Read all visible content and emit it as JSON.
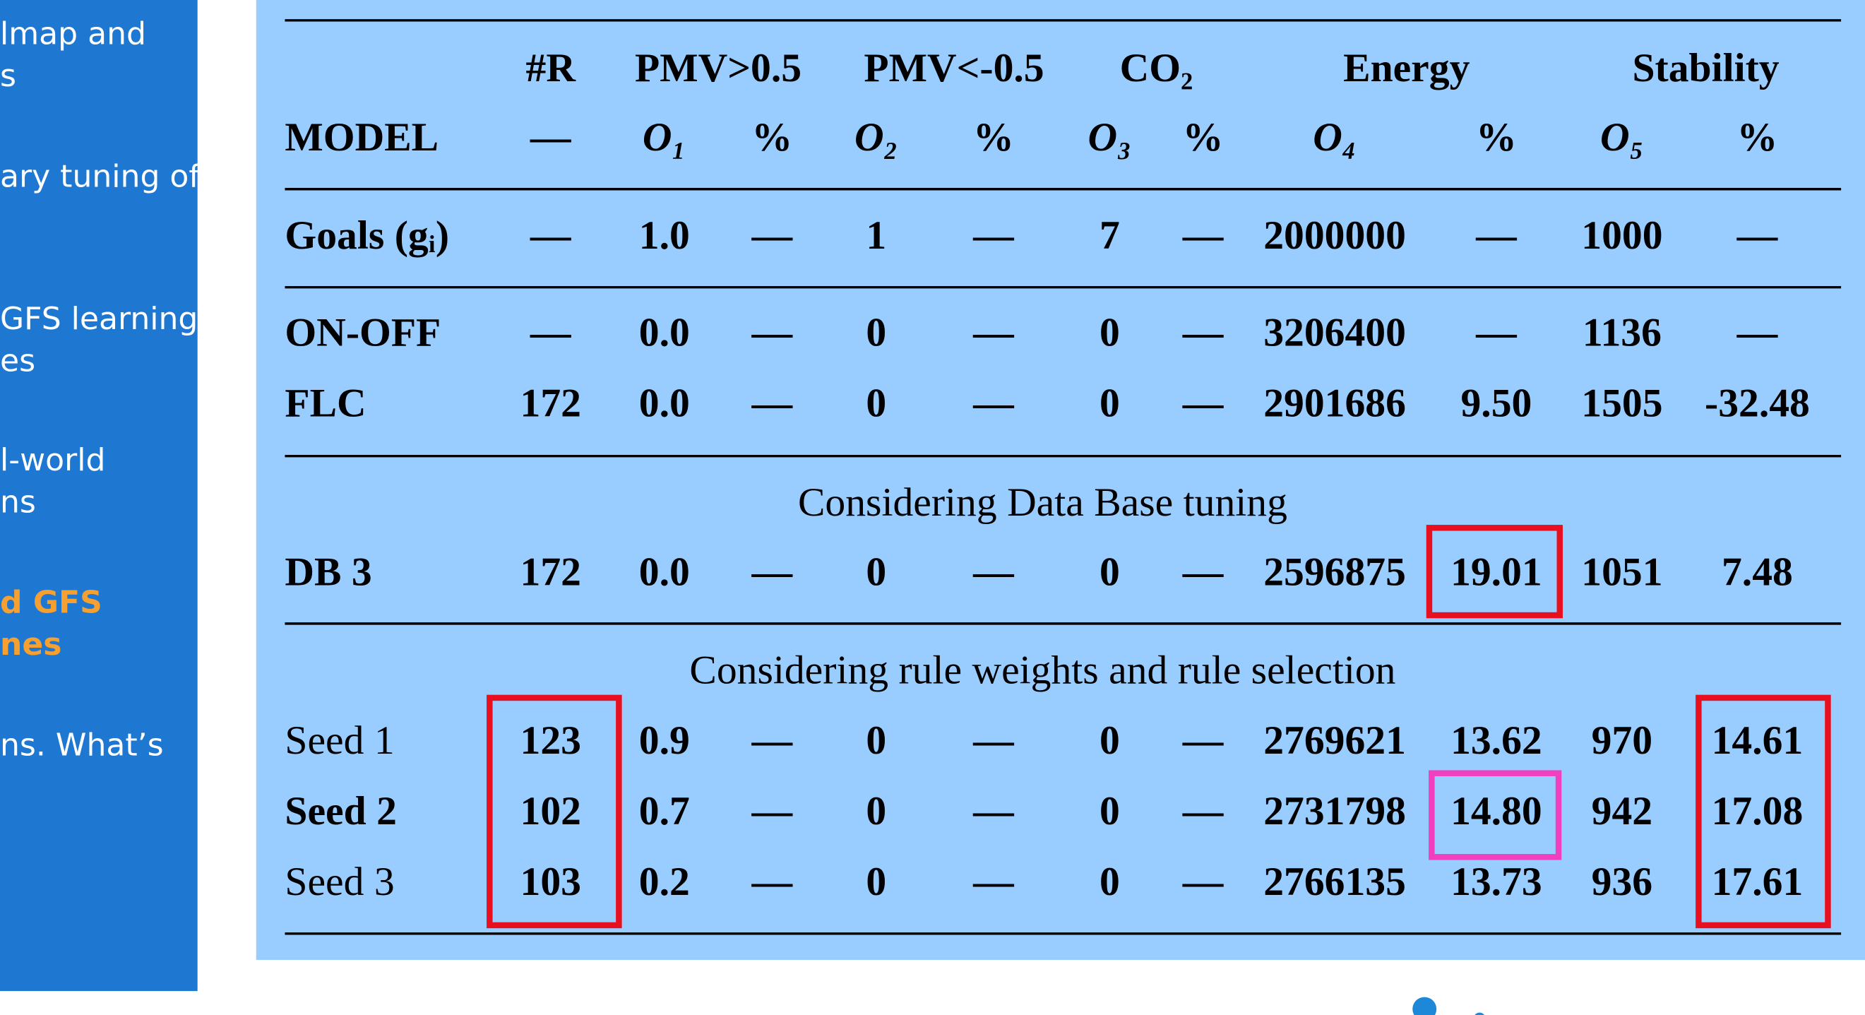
{
  "sidebar": {
    "lines": [
      "lmap and",
      "s",
      "ary tuning of",
      "GFS learning",
      "es",
      "l-world",
      "ns",
      "d GFS",
      "nes",
      "ns. What’s"
    ]
  },
  "table": {
    "header_top": [
      "#R",
      "PMV>0.5",
      "PMV<-0.5",
      "CO₂",
      "Energy",
      "Stability"
    ],
    "header": [
      "MODEL",
      "—",
      "O₁",
      "%",
      "O₂",
      "%",
      "O₃",
      "%",
      "O₄",
      "%",
      "O₅",
      "%"
    ],
    "rows": [
      [
        "Goals (gᵢ)",
        "—",
        "1.0",
        "—",
        "1",
        "—",
        "7",
        "—",
        "2000000",
        "—",
        "1000",
        "—"
      ],
      [
        "ON-OFF",
        "—",
        "0.0",
        "—",
        "0",
        "—",
        "0",
        "—",
        "3206400",
        "—",
        "1136",
        "—"
      ],
      [
        "FLC",
        "172",
        "0.0",
        "—",
        "0",
        "—",
        "0",
        "—",
        "2901686",
        "9.50",
        "1505",
        "-32.48"
      ],
      [
        "DB 3",
        "172",
        "0.0",
        "—",
        "0",
        "—",
        "0",
        "—",
        "2596875",
        "19.01",
        "1051",
        "7.48"
      ],
      [
        "Seed 1",
        "123",
        "0.9",
        "—",
        "0",
        "—",
        "0",
        "—",
        "2769621",
        "13.62",
        "970",
        "14.61"
      ],
      [
        "Seed 2",
        "102",
        "0.7",
        "—",
        "0",
        "—",
        "0",
        "—",
        "2731798",
        "14.80",
        "942",
        "17.08"
      ],
      [
        "Seed 3",
        "103",
        "0.2",
        "—",
        "0",
        "—",
        "0",
        "—",
        "2766135",
        "13.73",
        "936",
        "17.61"
      ]
    ],
    "sections": [
      "Considering Data Base tuning",
      "Considering rule weights and rule selection"
    ]
  }
}
